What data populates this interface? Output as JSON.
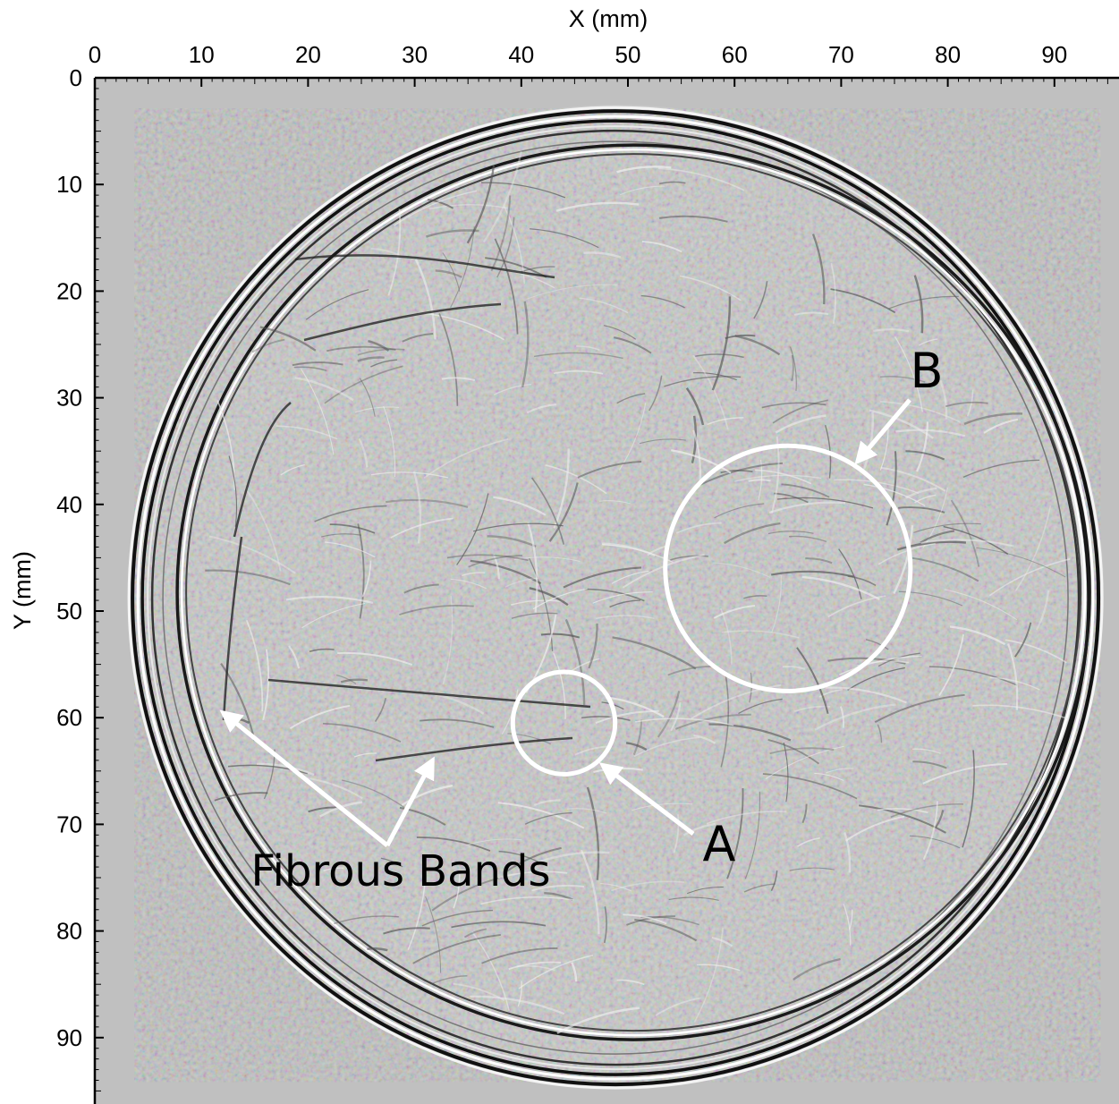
{
  "figure": {
    "x_axis": {
      "label": "X (mm)",
      "ticks": [
        "0",
        "10",
        "20",
        "30",
        "40",
        "50",
        "60",
        "70",
        "80",
        "90"
      ],
      "tick_values": [
        0,
        10,
        20,
        30,
        40,
        50,
        60,
        70,
        80,
        90
      ],
      "range": [
        0,
        95.5
      ],
      "position": "top"
    },
    "y_axis": {
      "label": "Y (mm)",
      "ticks": [
        "0",
        "10",
        "20",
        "30",
        "40",
        "50",
        "60",
        "70",
        "80",
        "90"
      ],
      "tick_values": [
        0,
        10,
        20,
        30,
        40,
        50,
        60,
        70,
        80,
        90
      ],
      "range": [
        0,
        95.5
      ],
      "position": "left",
      "inverted": true
    },
    "image": {
      "description_icon": "ultrasound-tomography-image",
      "background_color": "#c0c0c0",
      "ring_color": "#111111",
      "field_color": "#c8c8c8",
      "ring_center_mm": [
        49,
        48.5
      ],
      "ring_radius_mm": 45.3
    },
    "regions": [
      {
        "label": "A",
        "center_mm": [
          44,
          60.5
        ],
        "radius_mm": 4.8,
        "stroke": "#ffffff"
      },
      {
        "label": "B",
        "center_mm": [
          65,
          46
        ],
        "radius_mm": 11.5,
        "stroke": "#ffffff"
      }
    ],
    "annotations": {
      "fibrous_bands": {
        "text": "Fibrous Bands",
        "pointer_tips_mm": [
          [
            11.7,
            59.2
          ],
          [
            31.5,
            63.5
          ]
        ]
      },
      "region_a": {
        "text": "A",
        "pointer_tip_mm": [
          47.3,
          64.2
        ]
      },
      "region_b": {
        "text": "B",
        "pointer_tip_mm": [
          71.2,
          35.8
        ]
      }
    }
  }
}
